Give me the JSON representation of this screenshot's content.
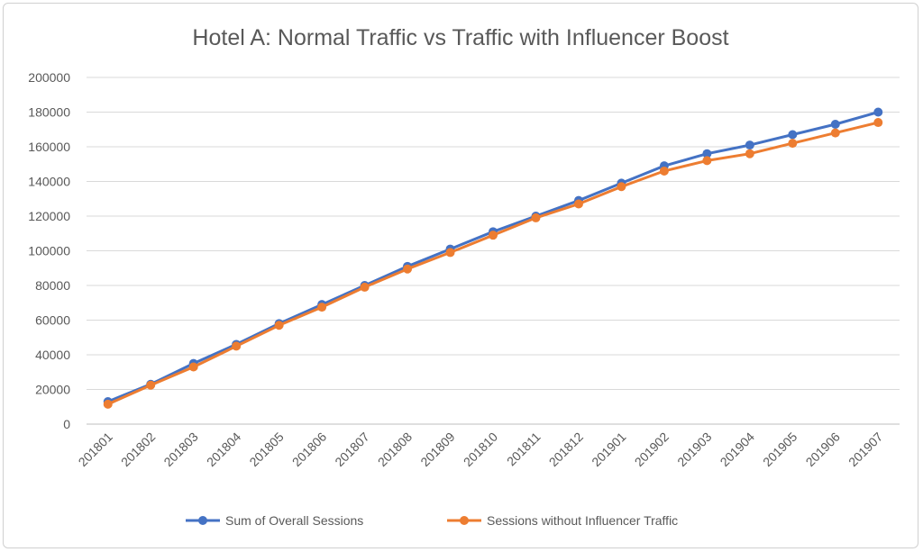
{
  "chart_data": {
    "type": "line",
    "title": "Hotel A: Normal Traffic vs Traffic with Influencer Boost",
    "xlabel": "",
    "ylabel": "",
    "categories": [
      "201801",
      "201802",
      "201803",
      "201804",
      "201805",
      "201806",
      "201807",
      "201808",
      "201809",
      "201810",
      "201811",
      "201812",
      "201901",
      "201902",
      "201903",
      "201904",
      "201905",
      "201906",
      "201907"
    ],
    "ylim": [
      0,
      200000
    ],
    "yticks": [
      0,
      20000,
      40000,
      60000,
      80000,
      100000,
      120000,
      140000,
      160000,
      180000,
      200000
    ],
    "grid": true,
    "legend_position": "bottom",
    "series": [
      {
        "name": "Sum of Overall Sessions",
        "color": "#4472c4",
        "values": [
          13000,
          23000,
          35000,
          46000,
          58000,
          69000,
          80000,
          91000,
          101000,
          111000,
          120000,
          129000,
          139000,
          149000,
          156000,
          161000,
          167000,
          173000,
          180000
        ]
      },
      {
        "name": "Sessions without Influencer Traffic",
        "color": "#ed7d31",
        "values": [
          11500,
          22500,
          33000,
          45000,
          57000,
          67500,
          79000,
          89500,
          99000,
          109000,
          119000,
          127000,
          137000,
          146000,
          152000,
          156000,
          162000,
          168000,
          174000
        ]
      }
    ]
  }
}
